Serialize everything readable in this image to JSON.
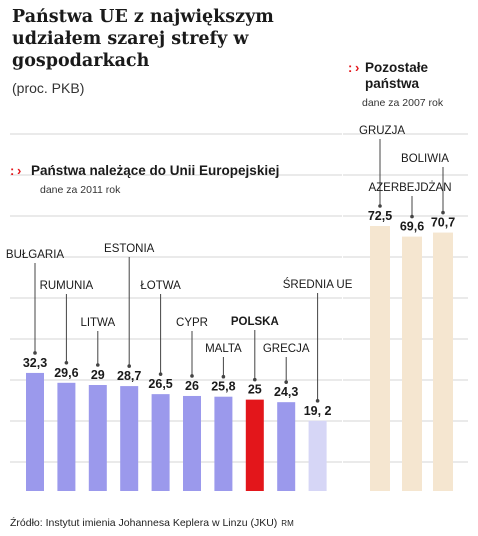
{
  "title": "Państwa UE z największym udziałem szarej strefy w gospodarkach",
  "unit_label": "(proc. PKB)",
  "source": "Źródło: Instytut imienia Johannesa Keplera w Linzu (JKU)",
  "source_mark": "RM",
  "colors": {
    "eu": "#9b99ec",
    "poland": "#e3161b",
    "average": "#d6d6f6",
    "other": "#f5e6d0",
    "grid": "#d6d6d6",
    "dot_red": "#e3161b",
    "leader": "#444444"
  },
  "chart_data": [
    {
      "type": "bar",
      "title": "Państwa należące do Unii Europejskiej",
      "subtitle": "dane za 2011 rok",
      "categories": [
        "BUŁGARIA",
        "RUMUNIA",
        "LITWA",
        "ESTONIA",
        "ŁOTWA",
        "CYPR",
        "MALTA",
        "POLSKA",
        "GRECJA",
        "ŚREDNIA UE"
      ],
      "values": [
        32.3,
        29.6,
        29,
        28.7,
        26.5,
        26,
        25.8,
        25,
        24.3,
        19.2
      ],
      "value_labels": [
        "32,3",
        "29,6",
        "29",
        "28,7",
        "26,5",
        "26",
        "25,8",
        "25",
        "24,3",
        "19, 2"
      ],
      "highlight": [
        "normal",
        "normal",
        "normal",
        "normal",
        "normal",
        "normal",
        "normal",
        "poland",
        "normal",
        "average"
      ],
      "ylim": [
        0,
        80
      ],
      "grid": true
    },
    {
      "type": "bar",
      "title": "Pozostałe państwa",
      "subtitle": "dane za 2007 rok",
      "categories": [
        "GRUZJA",
        "AZERBEJDŻAN",
        "BOLIWIA"
      ],
      "values": [
        72.5,
        69.6,
        70.7
      ],
      "value_labels": [
        "72,5",
        "69,6",
        "70,7"
      ],
      "ylim": [
        0,
        80
      ],
      "grid": true
    }
  ]
}
